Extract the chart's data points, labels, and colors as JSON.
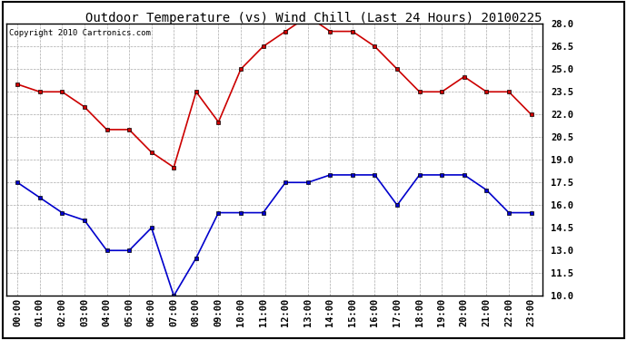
{
  "title": "Outdoor Temperature (vs) Wind Chill (Last 24 Hours) 20100225",
  "copyright": "Copyright 2010 Cartronics.com",
  "hours": [
    "00:00",
    "01:00",
    "02:00",
    "03:00",
    "04:00",
    "05:00",
    "06:00",
    "07:00",
    "08:00",
    "09:00",
    "10:00",
    "11:00",
    "12:00",
    "13:00",
    "14:00",
    "15:00",
    "16:00",
    "17:00",
    "18:00",
    "19:00",
    "20:00",
    "21:00",
    "22:00",
    "23:00"
  ],
  "temp": [
    24.0,
    23.5,
    23.5,
    22.5,
    21.0,
    21.0,
    19.5,
    18.5,
    23.5,
    21.5,
    25.0,
    26.5,
    27.5,
    28.5,
    27.5,
    27.5,
    26.5,
    25.0,
    23.5,
    23.5,
    24.5,
    23.5,
    23.5,
    22.0
  ],
  "wind_chill": [
    17.5,
    16.5,
    15.5,
    15.0,
    13.0,
    13.0,
    14.5,
    10.0,
    12.5,
    15.5,
    15.5,
    15.5,
    17.5,
    17.5,
    18.0,
    18.0,
    18.0,
    16.0,
    18.0,
    18.0,
    18.0,
    17.0,
    15.5,
    15.5
  ],
  "temp_color": "#cc0000",
  "wind_chill_color": "#0000cc",
  "bg_color": "#ffffff",
  "plot_bg_color": "#ffffff",
  "grid_color": "#aaaaaa",
  "ylim_min": 10.0,
  "ylim_max": 28.0,
  "yticks": [
    10.0,
    11.5,
    13.0,
    14.5,
    16.0,
    17.5,
    19.0,
    20.5,
    22.0,
    23.5,
    25.0,
    26.5,
    28.0
  ],
  "title_fontsize": 10,
  "tick_fontsize": 7.5,
  "copyright_fontsize": 6.5,
  "border_color": "#000000",
  "marker": "s",
  "markersize": 3,
  "linewidth": 1.2
}
